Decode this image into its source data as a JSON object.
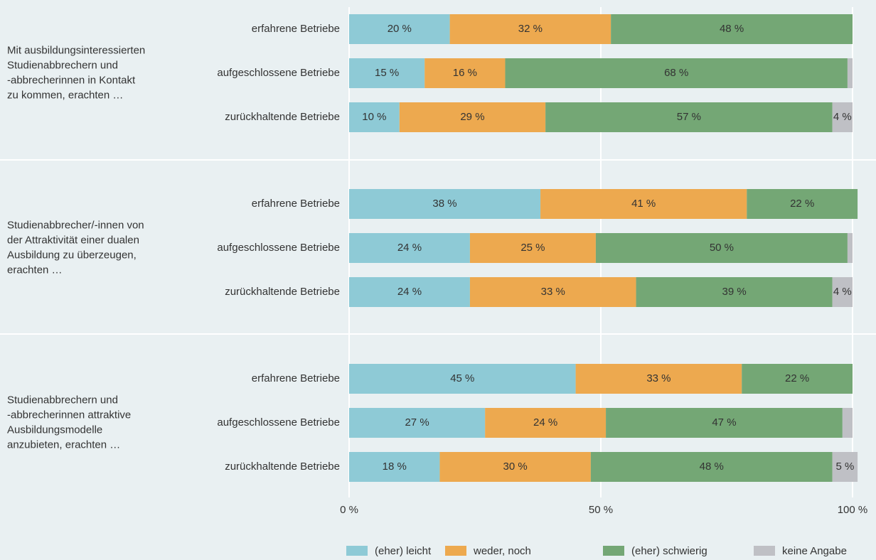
{
  "chart_data": {
    "type": "stacked-barh",
    "group_labels": [
      [
        "Mit ausbildungsinteressierten",
        "Studienabbrechern und",
        "-abbrecherinnen in Kontakt",
        "zu kommen, erachten …"
      ],
      [
        "Studienabbrecher/-innen von",
        "der Attraktivität einer dualen",
        "Ausbildung zu überzeugen,",
        "erachten …"
      ],
      [
        "Studienabbrechern und",
        "-abbrecherinnen attraktive",
        "Ausbildungsmodelle",
        "anzubieten, erachten …"
      ]
    ],
    "categories": [
      "erfahrene Betriebe",
      "aufgeschlossene Betriebe",
      "zurückhaltende Betriebe",
      "erfahrene Betriebe",
      "aufgeschlossene Betriebe",
      "zurückhaltende Betriebe",
      "erfahrene Betriebe",
      "aufgeschlossene Betriebe",
      "zurückhaltende Betriebe"
    ],
    "series": [
      {
        "name": "(eher) leicht",
        "color": "#8ecad6",
        "values": [
          20,
          15,
          10,
          38,
          24,
          24,
          45,
          27,
          18
        ],
        "value_labels": [
          "20 %",
          "15 %",
          "10 %",
          "38 %",
          "24 %",
          "24 %",
          "45 %",
          "27 %",
          "18 %"
        ]
      },
      {
        "name": "weder, noch",
        "color": "#eda94f",
        "values": [
          32,
          16,
          29,
          41,
          25,
          33,
          33,
          24,
          30
        ],
        "value_labels": [
          "32 %",
          "16 %",
          "29 %",
          "41 %",
          "25 %",
          "33 %",
          "33 %",
          "24 %",
          "30 %"
        ]
      },
      {
        "name": "(eher) schwierig",
        "color": "#74a775",
        "values": [
          48,
          68,
          57,
          22,
          50,
          39,
          22,
          47,
          48
        ],
        "value_labels": [
          "48 %",
          "68 %",
          "57 %",
          "22 %",
          "50 %",
          "39 %",
          "22 %",
          "47 %",
          "48 %"
        ]
      },
      {
        "name": "keine Angabe",
        "color": "#bfc0c5",
        "values": [
          0,
          1,
          4,
          0,
          1,
          4,
          0,
          2,
          5
        ],
        "value_labels": [
          null,
          null,
          "4 %",
          null,
          null,
          "4 %",
          null,
          null,
          "5 %"
        ]
      }
    ],
    "xlim": [
      0,
      100
    ],
    "xticks": [
      {
        "value": 0,
        "label": "0 %"
      },
      {
        "value": 50,
        "label": "50 %"
      },
      {
        "value": 100,
        "label": "100 %"
      }
    ],
    "grid": true,
    "legend": "bottom"
  }
}
